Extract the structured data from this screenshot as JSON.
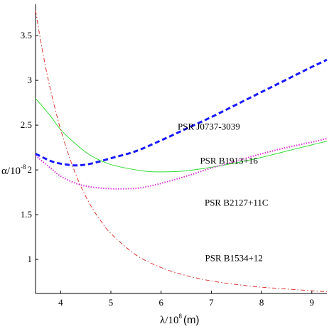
{
  "chart_data": {
    "type": "line",
    "xlabel": {
      "main": "λ/10",
      "exp": "8",
      "unit": "(m)"
    },
    "ylabel": {
      "main": "α/10",
      "exp": "-8"
    },
    "xlim": [
      3.5,
      9.3
    ],
    "ylim": [
      0.62,
      3.85
    ],
    "x_ticks": [
      4,
      5,
      6,
      7,
      8,
      9
    ],
    "x_tick_labels": [
      "4",
      "5",
      "6",
      "7",
      "8",
      "9"
    ],
    "y_ticks": [
      1,
      1.5,
      2,
      2.5,
      3,
      3.5
    ],
    "y_tick_labels": [
      "1",
      "1.5",
      "2",
      "2.5",
      "3",
      "3.5"
    ],
    "grid": false,
    "series": [
      {
        "name": "PSR J0737-3039",
        "color": "#1a1aff",
        "dash": "dashed",
        "width": 3,
        "x": [
          3.5,
          3.8,
          4.0,
          4.3,
          4.6,
          5.0,
          5.5,
          6.0,
          6.5,
          7.0,
          7.5,
          8.0,
          8.5,
          9.0,
          9.3
        ],
        "y": [
          2.18,
          2.1,
          2.07,
          2.05,
          2.07,
          2.13,
          2.21,
          2.33,
          2.46,
          2.59,
          2.73,
          2.87,
          3.01,
          3.15,
          3.23
        ]
      },
      {
        "name": "PSR B1913+16",
        "color": "#33dd33",
        "dash": "solid",
        "width": 1,
        "x": [
          3.5,
          3.8,
          4.0,
          4.3,
          4.6,
          5.0,
          5.5,
          5.8,
          6.2,
          6.5,
          7.0,
          7.5,
          8.0,
          8.5,
          9.0,
          9.3
        ],
        "y": [
          2.8,
          2.6,
          2.45,
          2.29,
          2.16,
          2.06,
          2.0,
          1.98,
          1.98,
          1.99,
          2.03,
          2.08,
          2.14,
          2.21,
          2.28,
          2.32
        ]
      },
      {
        "name": "PSR B2127+11C",
        "color": "#dd33dd",
        "dash": "dotted",
        "width": 2,
        "x": [
          3.5,
          3.8,
          4.0,
          4.3,
          4.6,
          5.0,
          5.3,
          5.6,
          6.0,
          6.5,
          7.0,
          7.5,
          8.0,
          8.5,
          9.0,
          9.3
        ],
        "y": [
          2.16,
          2.02,
          1.93,
          1.85,
          1.81,
          1.79,
          1.79,
          1.8,
          1.85,
          1.93,
          2.02,
          2.1,
          2.18,
          2.25,
          2.31,
          2.35
        ]
      },
      {
        "name": "PSR B1534+12",
        "color": "#dd3333",
        "dash": "dashdot",
        "width": 1,
        "x": [
          3.5,
          3.6,
          3.7,
          3.8,
          3.9,
          4.0,
          4.2,
          4.4,
          4.6,
          4.8,
          5.0,
          5.5,
          6.0,
          6.5,
          7.0,
          7.5,
          8.0,
          8.5,
          9.0,
          9.3
        ],
        "y": [
          3.78,
          3.45,
          3.15,
          2.89,
          2.66,
          2.45,
          2.1,
          1.82,
          1.6,
          1.43,
          1.29,
          1.05,
          0.91,
          0.82,
          0.76,
          0.72,
          0.69,
          0.67,
          0.65,
          0.64
        ]
      }
    ],
    "annotations": [
      {
        "text": "PSR J0737-3039",
        "series": 0,
        "x": 6.95,
        "y": 2.45
      },
      {
        "text": "PSR B1913+16",
        "series": 1,
        "x": 7.35,
        "y": 2.07
      },
      {
        "text": "PSR B2127+11C",
        "series": 2,
        "x": 7.5,
        "y": 1.6
      },
      {
        "text": "PSR B1534+12",
        "series": 3,
        "x": 7.45,
        "y": 0.98
      }
    ]
  }
}
